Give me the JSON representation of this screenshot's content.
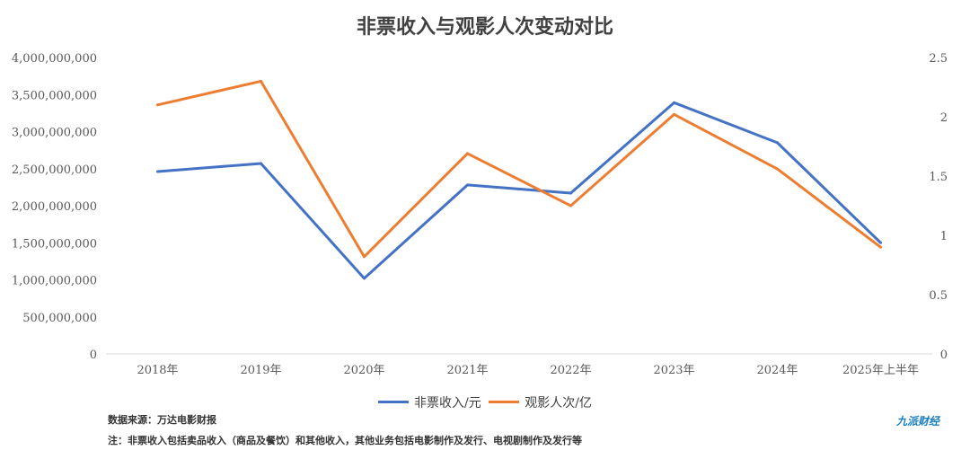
{
  "chart_data": {
    "type": "line",
    "title": "非票收入与观影人次变动对比",
    "categories": [
      "2018年",
      "2019年",
      "2020年",
      "2021年",
      "2022年",
      "2023年",
      "2024年",
      "2025年上半年"
    ],
    "series": [
      {
        "name": "非票收入/元",
        "axis": "left",
        "color": "#4472C4",
        "values": [
          2460000000,
          2570000000,
          1020000000,
          2280000000,
          2170000000,
          3390000000,
          2850000000,
          1500000000
        ]
      },
      {
        "name": "观影人次/亿",
        "axis": "right",
        "color": "#ED7D31",
        "values": [
          2.1,
          2.3,
          0.82,
          1.69,
          1.25,
          2.02,
          1.56,
          0.9
        ]
      }
    ],
    "ylim_left": [
      0,
      4000000000
    ],
    "ylim_right": [
      0,
      2.5
    ],
    "left_ticks": [
      "0",
      "500,000,000",
      "1,000,000,000",
      "1,500,000,000",
      "2,000,000,000",
      "2,500,000,000",
      "3,000,000,000",
      "3,500,000,000",
      "4,000,000,000"
    ],
    "right_ticks": [
      "0",
      "0.5",
      "1",
      "1.5",
      "2",
      "2.5"
    ],
    "legend_position": "bottom",
    "grid": false
  },
  "footer": {
    "source": "数据来源：万达电影财报",
    "note": "注：非票收入包括卖品收入（商品及餐饮）和其他收入，其他业务包括电影制作及发行、电视剧制作及发行等",
    "logo": "九派财经"
  }
}
